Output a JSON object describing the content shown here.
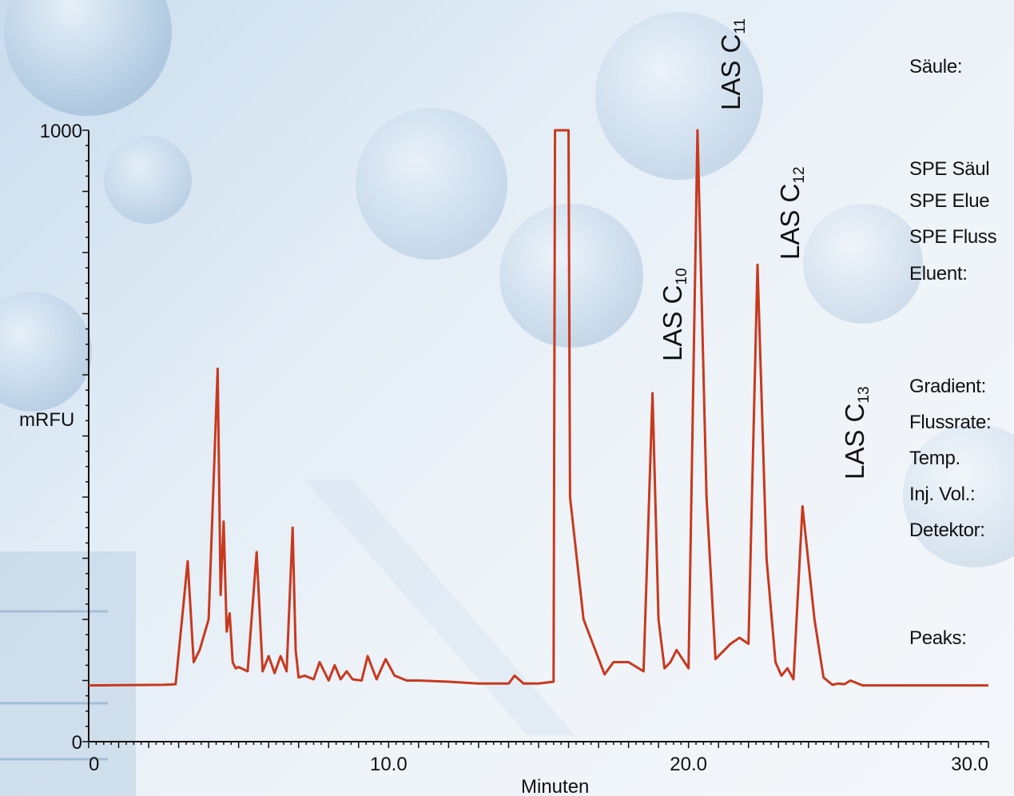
{
  "chart_data": {
    "type": "line",
    "title": "",
    "xlabel": "Minuten",
    "ylabel": "mRFU",
    "xlim": [
      0,
      30
    ],
    "ylim": [
      0,
      1000
    ],
    "x_tick_labels": [
      "0",
      "10.0",
      "20.0",
      "30.0"
    ],
    "y_tick_labels": [
      "0",
      "1000"
    ],
    "line_color": "#c8391e",
    "grid": false,
    "series": [
      {
        "x": [
          0,
          2.5,
          2.9,
          3.3,
          3.5,
          3.7,
          4.0,
          4.3,
          4.4,
          4.5,
          4.6,
          4.7,
          4.8,
          4.9,
          5.0,
          5.3,
          5.6,
          5.8,
          6.0,
          6.2,
          6.4,
          6.6,
          6.8,
          6.9,
          7.0,
          7.2,
          7.5,
          7.7,
          8.0,
          8.2,
          8.4,
          8.6,
          8.8,
          9.1,
          9.3,
          9.6,
          9.9,
          10.2,
          10.6,
          11.0,
          12.0,
          13.0,
          14.0,
          14.2,
          14.5,
          15.0,
          15.5,
          15.55,
          16.0,
          16.05,
          16.5,
          17.2,
          17.5,
          18.0,
          18.5,
          18.8,
          19.0,
          19.2,
          19.4,
          19.6,
          20.0,
          20.3,
          20.6,
          20.9,
          21.2,
          21.4,
          21.7,
          22.0,
          22.3,
          22.6,
          22.9,
          23.1,
          23.3,
          23.5,
          23.8,
          24.2,
          24.5,
          24.8,
          25.0,
          25.2,
          25.4,
          25.8,
          26.2,
          27.0,
          28.0,
          30.0
        ],
        "y": [
          92,
          93,
          94,
          295,
          130,
          150,
          200,
          610,
          240,
          360,
          180,
          210,
          130,
          120,
          122,
          115,
          310,
          115,
          140,
          112,
          140,
          115,
          350,
          150,
          105,
          108,
          102,
          130,
          100,
          125,
          102,
          115,
          102,
          100,
          140,
          102,
          135,
          108,
          100,
          100,
          98,
          95,
          95,
          108,
          95,
          95,
          98,
          1000,
          1000,
          400,
          200,
          110,
          130,
          130,
          115,
          570,
          200,
          120,
          130,
          150,
          120,
          1000,
          400,
          135,
          150,
          160,
          170,
          160,
          780,
          300,
          130,
          108,
          120,
          102,
          385,
          200,
          105,
          93,
          95,
          94,
          100,
          92,
          92,
          92,
          92,
          92
        ]
      }
    ],
    "annotations": [
      {
        "label": "LAS C",
        "sub": "10",
        "x": 18.8
      },
      {
        "label": "LAS C",
        "sub": "11",
        "x": 20.0
      },
      {
        "label": "LAS C",
        "sub": "12",
        "x": 21.7
      },
      {
        "label": "LAS C",
        "sub": "13",
        "x": 22.3
      }
    ]
  },
  "side_panel": {
    "labels": [
      "Säule:",
      "SPE Säul",
      "SPE Elue",
      "SPE Fluss",
      "Eluent:",
      "Gradient:",
      "Flussrate:",
      "Temp.",
      "Inj. Vol.:",
      "Detektor:",
      "Peaks:"
    ]
  }
}
